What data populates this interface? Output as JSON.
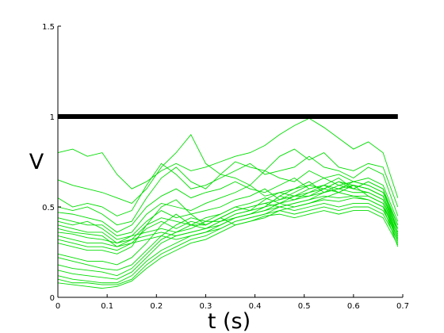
{
  "chart_data": {
    "type": "line",
    "title": "",
    "xlabel": "t (s)",
    "ylabel": "V",
    "xlim": [
      0,
      0.7
    ],
    "ylim": [
      0,
      1.5
    ],
    "xticks": [
      0,
      0.1,
      0.2,
      0.3,
      0.4,
      0.5,
      0.6,
      0.7
    ],
    "xtick_labels": [
      "0",
      "0.1",
      "0.2",
      "0.3",
      "0.4",
      "0.5",
      "0.6",
      "0.7"
    ],
    "yticks": [
      0,
      0.5,
      1,
      1.5
    ],
    "ytick_labels": [
      "0",
      "0.5",
      "1",
      "1.5"
    ],
    "grid": false,
    "legend": "none",
    "threshold": {
      "y": 1.0,
      "x": [
        0,
        0.69
      ],
      "color": "#000000"
    },
    "series_color": "#00dd00",
    "x": [
      0,
      0.03,
      0.06,
      0.09,
      0.12,
      0.15,
      0.18,
      0.21,
      0.24,
      0.27,
      0.3,
      0.33,
      0.36,
      0.39,
      0.42,
      0.45,
      0.48,
      0.51,
      0.54,
      0.57,
      0.6,
      0.63,
      0.66,
      0.69
    ],
    "series": [
      {
        "values": [
          0.8,
          0.82,
          0.78,
          0.8,
          0.68,
          0.6,
          0.64,
          0.7,
          0.74,
          0.7,
          0.72,
          0.75,
          0.78,
          0.8,
          0.84,
          0.9,
          0.95,
          0.99,
          0.94,
          0.88,
          0.82,
          0.86,
          0.8,
          0.55
        ]
      },
      {
        "values": [
          0.65,
          0.62,
          0.6,
          0.58,
          0.55,
          0.52,
          0.6,
          0.72,
          0.8,
          0.9,
          0.74,
          0.68,
          0.75,
          0.72,
          0.7,
          0.78,
          0.82,
          0.76,
          0.8,
          0.72,
          0.7,
          0.74,
          0.72,
          0.5
        ]
      },
      {
        "values": [
          0.55,
          0.5,
          0.52,
          0.5,
          0.45,
          0.48,
          0.62,
          0.74,
          0.68,
          0.6,
          0.62,
          0.66,
          0.7,
          0.74,
          0.68,
          0.7,
          0.72,
          0.78,
          0.72,
          0.7,
          0.66,
          0.72,
          0.68,
          0.45
        ]
      },
      {
        "values": [
          0.5,
          0.48,
          0.5,
          0.46,
          0.4,
          0.42,
          0.55,
          0.66,
          0.72,
          0.64,
          0.6,
          0.68,
          0.66,
          0.62,
          0.7,
          0.66,
          0.64,
          0.7,
          0.66,
          0.68,
          0.64,
          0.66,
          0.62,
          0.42
        ]
      },
      {
        "values": [
          0.47,
          0.46,
          0.44,
          0.42,
          0.36,
          0.4,
          0.5,
          0.56,
          0.6,
          0.55,
          0.58,
          0.6,
          0.64,
          0.6,
          0.58,
          0.62,
          0.66,
          0.6,
          0.62,
          0.66,
          0.6,
          0.64,
          0.6,
          0.4
        ]
      },
      {
        "values": [
          0.44,
          0.42,
          0.4,
          0.4,
          0.34,
          0.36,
          0.46,
          0.52,
          0.5,
          0.48,
          0.52,
          0.55,
          0.58,
          0.62,
          0.56,
          0.58,
          0.6,
          0.64,
          0.58,
          0.62,
          0.64,
          0.62,
          0.58,
          0.38
        ]
      },
      {
        "values": [
          0.42,
          0.4,
          0.42,
          0.38,
          0.32,
          0.34,
          0.42,
          0.48,
          0.44,
          0.46,
          0.48,
          0.5,
          0.54,
          0.56,
          0.6,
          0.54,
          0.56,
          0.58,
          0.6,
          0.58,
          0.62,
          0.6,
          0.56,
          0.36
        ]
      },
      {
        "values": [
          0.4,
          0.38,
          0.36,
          0.36,
          0.3,
          0.32,
          0.4,
          0.44,
          0.42,
          0.4,
          0.44,
          0.46,
          0.5,
          0.52,
          0.55,
          0.52,
          0.54,
          0.56,
          0.58,
          0.6,
          0.58,
          0.58,
          0.54,
          0.34
        ]
      },
      {
        "values": [
          0.38,
          0.36,
          0.35,
          0.34,
          0.28,
          0.3,
          0.38,
          0.42,
          0.38,
          0.42,
          0.4,
          0.44,
          0.48,
          0.5,
          0.52,
          0.5,
          0.52,
          0.54,
          0.56,
          0.55,
          0.56,
          0.56,
          0.52,
          0.32
        ]
      },
      {
        "values": [
          0.36,
          0.35,
          0.33,
          0.32,
          0.3,
          0.34,
          0.36,
          0.38,
          0.36,
          0.38,
          0.42,
          0.42,
          0.46,
          0.48,
          0.5,
          0.52,
          0.5,
          0.52,
          0.54,
          0.53,
          0.55,
          0.54,
          0.5,
          0.35
        ]
      },
      {
        "values": [
          0.34,
          0.32,
          0.3,
          0.3,
          0.28,
          0.32,
          0.34,
          0.36,
          0.34,
          0.36,
          0.38,
          0.4,
          0.44,
          0.46,
          0.48,
          0.5,
          0.48,
          0.5,
          0.52,
          0.5,
          0.52,
          0.52,
          0.48,
          0.33
        ]
      },
      {
        "values": [
          0.32,
          0.3,
          0.28,
          0.28,
          0.26,
          0.3,
          0.32,
          0.34,
          0.32,
          0.34,
          0.36,
          0.38,
          0.42,
          0.44,
          0.46,
          0.48,
          0.46,
          0.48,
          0.5,
          0.48,
          0.5,
          0.5,
          0.46,
          0.31
        ]
      },
      {
        "values": [
          0.3,
          0.28,
          0.26,
          0.26,
          0.24,
          0.28,
          0.4,
          0.5,
          0.54,
          0.46,
          0.4,
          0.44,
          0.4,
          0.42,
          0.45,
          0.46,
          0.44,
          0.46,
          0.48,
          0.46,
          0.48,
          0.48,
          0.44,
          0.29
        ]
      },
      {
        "values": [
          0.24,
          0.22,
          0.2,
          0.2,
          0.18,
          0.22,
          0.3,
          0.4,
          0.46,
          0.4,
          0.38,
          0.42,
          0.44,
          0.46,
          0.5,
          0.56,
          0.6,
          0.62,
          0.6,
          0.64,
          0.62,
          0.6,
          0.56,
          0.38
        ]
      },
      {
        "values": [
          0.22,
          0.2,
          0.18,
          0.16,
          0.15,
          0.18,
          0.26,
          0.34,
          0.4,
          0.44,
          0.42,
          0.46,
          0.5,
          0.48,
          0.54,
          0.58,
          0.56,
          0.6,
          0.62,
          0.6,
          0.64,
          0.62,
          0.58,
          0.4
        ]
      },
      {
        "values": [
          0.18,
          0.16,
          0.15,
          0.14,
          0.12,
          0.16,
          0.24,
          0.32,
          0.36,
          0.4,
          0.4,
          0.44,
          0.48,
          0.5,
          0.52,
          0.54,
          0.58,
          0.62,
          0.66,
          0.62,
          0.6,
          0.64,
          0.6,
          0.36
        ]
      },
      {
        "values": [
          0.15,
          0.13,
          0.12,
          0.11,
          0.1,
          0.14,
          0.22,
          0.3,
          0.34,
          0.36,
          0.38,
          0.42,
          0.46,
          0.48,
          0.5,
          0.56,
          0.54,
          0.58,
          0.62,
          0.58,
          0.62,
          0.6,
          0.56,
          0.34
        ]
      },
      {
        "values": [
          0.12,
          0.1,
          0.09,
          0.08,
          0.08,
          0.12,
          0.2,
          0.26,
          0.3,
          0.34,
          0.36,
          0.4,
          0.44,
          0.46,
          0.48,
          0.52,
          0.56,
          0.56,
          0.6,
          0.64,
          0.6,
          0.58,
          0.54,
          0.32
        ]
      },
      {
        "values": [
          0.1,
          0.08,
          0.08,
          0.07,
          0.07,
          0.1,
          0.18,
          0.24,
          0.28,
          0.32,
          0.34,
          0.38,
          0.42,
          0.44,
          0.46,
          0.5,
          0.52,
          0.54,
          0.58,
          0.6,
          0.62,
          0.56,
          0.52,
          0.3
        ]
      },
      {
        "values": [
          0.08,
          0.07,
          0.06,
          0.05,
          0.06,
          0.09,
          0.16,
          0.22,
          0.26,
          0.3,
          0.32,
          0.36,
          0.4,
          0.42,
          0.44,
          0.48,
          0.5,
          0.52,
          0.55,
          0.58,
          0.56,
          0.54,
          0.5,
          0.28
        ]
      }
    ]
  }
}
